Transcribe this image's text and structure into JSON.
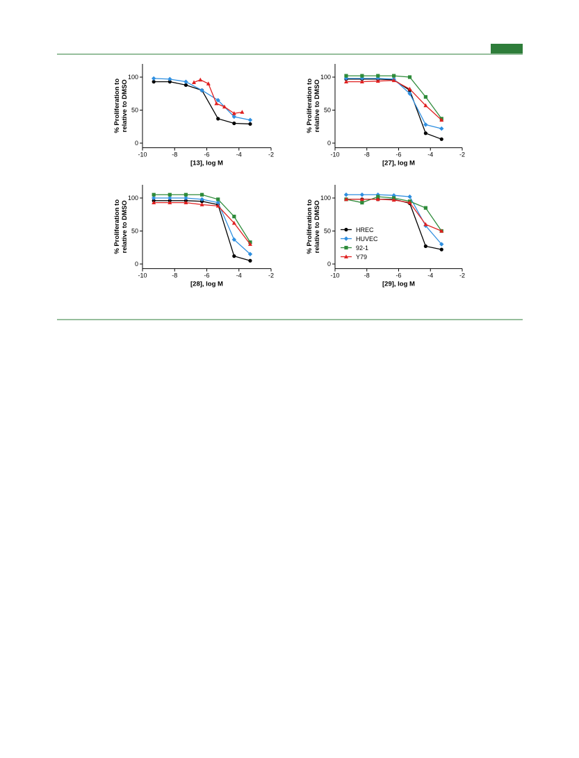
{
  "chart_data": [
    {
      "type": "line",
      "xlabel": "[13], log M",
      "ylabel": [
        "% Proliferation to",
        "relative to DMSO"
      ],
      "xlim": [
        -10,
        -2
      ],
      "ylim": [
        -7,
        120
      ],
      "xticks": [
        -10,
        -8,
        -6,
        -4,
        -2
      ],
      "yticks": [
        0,
        50,
        100
      ],
      "series": [
        {
          "color": "#000000",
          "marker": "circle",
          "x": [
            -9.3,
            -8.3,
            -7.3,
            -6.3,
            -5.3,
            -4.3,
            -3.3
          ],
          "values": [
            93,
            93,
            88,
            80,
            37,
            30,
            29
          ]
        },
        {
          "color": "#2f8fe0",
          "marker": "diamond",
          "x": [
            -9.3,
            -8.3,
            -7.3,
            -6.3,
            -5.3,
            -4.3,
            -3.3
          ],
          "values": [
            98,
            97,
            93,
            80,
            65,
            40,
            35
          ]
        },
        {
          "color": "#e02020",
          "marker": "triangle",
          "x": [
            -6.8,
            -6.4,
            -5.9,
            -5.4,
            -4.9,
            -4.3,
            -3.8
          ],
          "values": [
            92,
            96,
            90,
            60,
            55,
            45,
            47
          ]
        }
      ]
    },
    {
      "type": "line",
      "xlabel": "[27], log M",
      "ylabel": [
        "% Proliferation to",
        "relative to DMSO"
      ],
      "xlim": [
        -10,
        -2
      ],
      "ylim": [
        -7,
        120
      ],
      "xticks": [
        -10,
        -8,
        -6,
        -4,
        -2
      ],
      "yticks": [
        0,
        50,
        100
      ],
      "series": [
        {
          "color": "#000000",
          "marker": "circle",
          "x": [
            -9.3,
            -8.3,
            -7.3,
            -6.3,
            -5.3,
            -4.3,
            -3.3
          ],
          "values": [
            97,
            97,
            97,
            96,
            80,
            15,
            6
          ]
        },
        {
          "color": "#2f8fe0",
          "marker": "diamond",
          "x": [
            -9.3,
            -8.3,
            -7.3,
            -6.3,
            -5.3,
            -4.3,
            -3.3
          ],
          "values": [
            98,
            98,
            98,
            97,
            75,
            28,
            22
          ]
        },
        {
          "color": "#2e8b3a",
          "marker": "square",
          "x": [
            -9.3,
            -8.3,
            -7.3,
            -6.3,
            -5.3,
            -4.3,
            -3.3
          ],
          "values": [
            102,
            102,
            102,
            102,
            100,
            70,
            37
          ]
        },
        {
          "color": "#e02020",
          "marker": "triangle",
          "x": [
            -9.3,
            -8.3,
            -7.3,
            -6.3,
            -5.3,
            -4.3,
            -3.3
          ],
          "values": [
            93,
            93,
            94,
            95,
            82,
            57,
            35
          ]
        }
      ]
    },
    {
      "type": "line",
      "xlabel": "[28], log M",
      "ylabel": [
        "% Proliferation to",
        "relative to DMSO"
      ],
      "xlim": [
        -10,
        -2
      ],
      "ylim": [
        -7,
        120
      ],
      "xticks": [
        -10,
        -8,
        -6,
        -4,
        -2
      ],
      "yticks": [
        0,
        50,
        100
      ],
      "series": [
        {
          "color": "#000000",
          "marker": "circle",
          "x": [
            -9.3,
            -8.3,
            -7.3,
            -6.3,
            -5.3,
            -4.3,
            -3.3
          ],
          "values": [
            96,
            96,
            96,
            95,
            90,
            12,
            5
          ]
        },
        {
          "color": "#2f8fe0",
          "marker": "diamond",
          "x": [
            -9.3,
            -8.3,
            -7.3,
            -6.3,
            -5.3,
            -4.3,
            -3.3
          ],
          "values": [
            100,
            100,
            100,
            98,
            93,
            37,
            15
          ]
        },
        {
          "color": "#2e8b3a",
          "marker": "square",
          "x": [
            -9.3,
            -8.3,
            -7.3,
            -6.3,
            -5.3,
            -4.3,
            -3.3
          ],
          "values": [
            105,
            105,
            105,
            105,
            98,
            72,
            33
          ]
        },
        {
          "color": "#e02020",
          "marker": "triangle",
          "x": [
            -9.3,
            -8.3,
            -7.3,
            -6.3,
            -5.3,
            -4.3,
            -3.3
          ],
          "values": [
            93,
            93,
            93,
            90,
            88,
            62,
            30
          ]
        }
      ]
    },
    {
      "type": "line",
      "xlabel": "[29], log M",
      "ylabel": [
        "% Proliferation to",
        "relative to DMSO"
      ],
      "xlim": [
        -10,
        -2
      ],
      "ylim": [
        -7,
        120
      ],
      "xticks": [
        -10,
        -8,
        -6,
        -4,
        -2
      ],
      "yticks": [
        0,
        50,
        100
      ],
      "legend": "left",
      "series": [
        {
          "name": "HREC",
          "color": "#000000",
          "marker": "circle",
          "x": [
            -9.3,
            -8.3,
            -7.3,
            -6.3,
            -5.3,
            -4.3,
            -3.3
          ],
          "values": [
            98,
            98,
            98,
            98,
            92,
            27,
            22
          ]
        },
        {
          "name": "HUVEC",
          "color": "#2f8fe0",
          "marker": "diamond",
          "x": [
            -9.3,
            -8.3,
            -7.3,
            -6.3,
            -5.3,
            -4.3,
            -3.3
          ],
          "values": [
            105,
            105,
            105,
            104,
            102,
            58,
            30
          ]
        },
        {
          "name": "92-1",
          "color": "#2e8b3a",
          "marker": "square",
          "x": [
            -9.3,
            -8.3,
            -7.3,
            -6.3,
            -5.3,
            -4.3,
            -3.3
          ],
          "values": [
            98,
            93,
            102,
            100,
            95,
            85,
            50
          ]
        },
        {
          "name": "Y79",
          "color": "#e02020",
          "marker": "triangle",
          "x": [
            -9.3,
            -8.3,
            -7.3,
            -6.3,
            -5.3,
            -4.3,
            -3.3
          ],
          "values": [
            98,
            98,
            98,
            97,
            93,
            60,
            50
          ]
        }
      ]
    }
  ]
}
